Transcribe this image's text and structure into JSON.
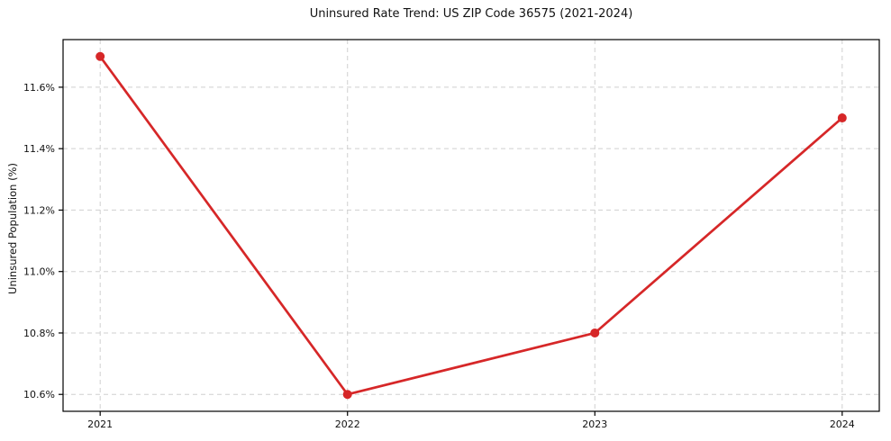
{
  "chart_data": {
    "type": "line",
    "title": "Uninsured Rate Trend: US ZIP Code 36575 (2021-2024)",
    "xlabel": "",
    "ylabel": "Uninsured Population (%)",
    "x": [
      2021,
      2022,
      2023,
      2024
    ],
    "x_tick_labels": [
      "2021",
      "2022",
      "2023",
      "2024"
    ],
    "series": [
      {
        "name": "Uninsured rate",
        "values": [
          11.7,
          10.6,
          10.8,
          11.5
        ]
      }
    ],
    "y_ticks": [
      10.6,
      10.8,
      11.0,
      11.2,
      11.4,
      11.6
    ],
    "y_tick_labels": [
      "10.6%",
      "10.8%",
      "11.0%",
      "11.2%",
      "11.4%",
      "11.6%"
    ],
    "xlim": [
      2020.85,
      2024.15
    ],
    "ylim": [
      10.545,
      11.755
    ],
    "grid": true,
    "grid_style": "dashed",
    "legend": "none",
    "colors": {
      "line": "#d62728",
      "marker": "#d62728",
      "grid": "#cfcfcf",
      "spine": "#000000",
      "background": "#ffffff"
    }
  }
}
